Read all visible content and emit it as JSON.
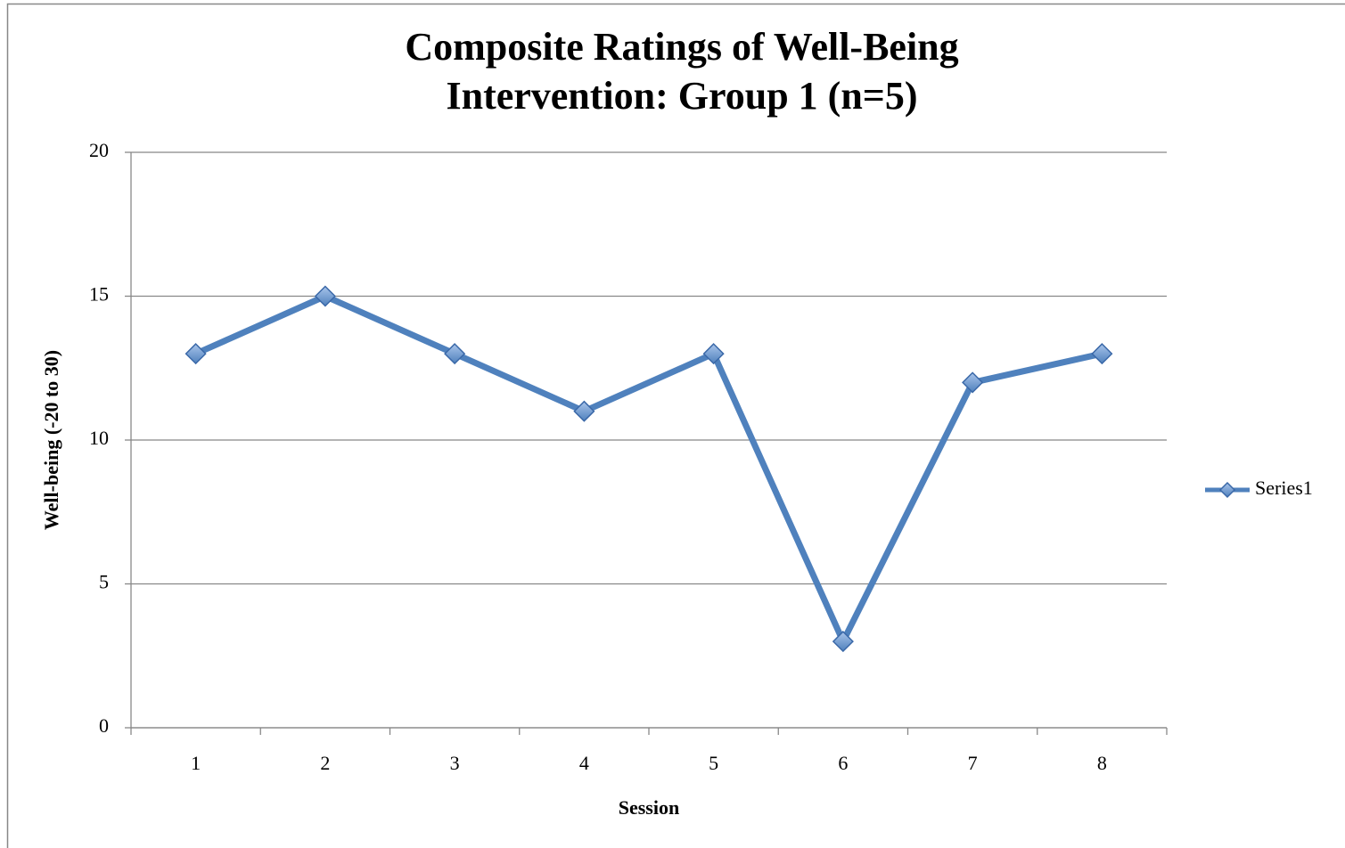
{
  "chart_data": {
    "type": "line",
    "title": [
      "Composite Ratings of Well-Being",
      "Intervention: Group 1 (n=5)"
    ],
    "x_label": "Session",
    "y_label": "Well-being (-20 to 30)",
    "categories": [
      "1",
      "2",
      "3",
      "4",
      "5",
      "6",
      "7",
      "8"
    ],
    "series": [
      {
        "name": "Series1",
        "color": "#4f81bd",
        "values": [
          13,
          15,
          13,
          11,
          13,
          3,
          12,
          13
        ]
      }
    ],
    "ylim": [
      0,
      20
    ],
    "yticks": [
      0,
      5,
      10,
      15,
      20
    ],
    "grid": true,
    "legend": "right"
  }
}
